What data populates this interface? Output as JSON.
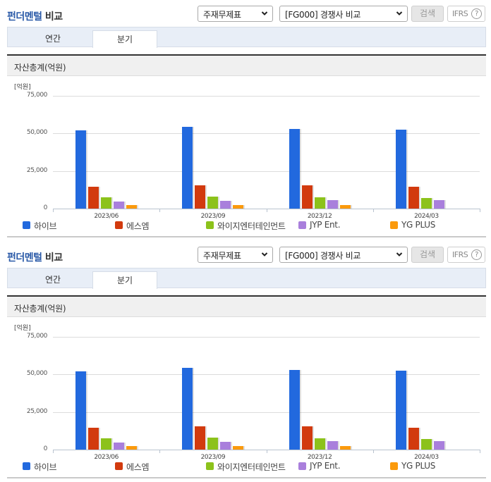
{
  "panels": [
    {
      "title_highlight": "펀더멘털",
      "title_rest": " 비교",
      "statement_select": {
        "value": "주재무제표"
      },
      "compare_select": {
        "value": "[FG000] 경쟁사 비교"
      },
      "search_button": "검색",
      "ifrs_button": "IFRS",
      "ifrs_help": "?",
      "tabs": [
        {
          "label": "연간",
          "active": false
        },
        {
          "label": "분기",
          "active": true
        }
      ],
      "section_title": "자산총계(억원)"
    },
    {
      "title_highlight": "펀더멘털",
      "title_rest": " 비교",
      "statement_select": {
        "value": "주재무제표"
      },
      "compare_select": {
        "value": "[FG000] 경쟁사 비교"
      },
      "search_button": "검색",
      "ifrs_button": "IFRS",
      "ifrs_help": "?",
      "tabs": [
        {
          "label": "연간",
          "active": false
        },
        {
          "label": "분기",
          "active": true
        }
      ],
      "section_title": "자산총계(억원)"
    }
  ],
  "chart_data": [
    {
      "type": "bar",
      "title": "자산총계(억원)",
      "unit_label": "[억원]",
      "xlabel": "",
      "ylabel": "",
      "ylim": [
        0,
        75000
      ],
      "yticks": [
        "75,000",
        "50,000",
        "25,000",
        "0"
      ],
      "ytick_values": [
        75000,
        50000,
        25000,
        0
      ],
      "grid": true,
      "legend_position": "bottom",
      "categories": [
        "2023/06",
        "2023/09",
        "2023/12",
        "2024/03"
      ],
      "series": [
        {
          "name": "하이브",
          "color": "#2269de",
          "values": [
            52200,
            54200,
            53200,
            52700
          ]
        },
        {
          "name": "에스엠",
          "color": "#d23a0e",
          "values": [
            14500,
            15500,
            15500,
            14500
          ]
        },
        {
          "name": "와이지엔터테인먼트",
          "color": "#8cc21b",
          "values": [
            7500,
            8000,
            7500,
            7000
          ]
        },
        {
          "name": "JYP Ent.",
          "color": "#a97fdc",
          "values": [
            4700,
            5200,
            5700,
            5700
          ]
        },
        {
          "name": "YG PLUS",
          "color": "#fb9a0c",
          "values": [
            2300,
            2300,
            2300,
            null
          ]
        }
      ]
    },
    {
      "type": "bar",
      "title": "자산총계(억원)",
      "unit_label": "[억원]",
      "xlabel": "",
      "ylabel": "",
      "ylim": [
        0,
        75000
      ],
      "yticks": [
        "75,000",
        "50,000",
        "25,000",
        "0"
      ],
      "ytick_values": [
        75000,
        50000,
        25000,
        0
      ],
      "grid": true,
      "legend_position": "bottom",
      "categories": [
        "2023/06",
        "2023/09",
        "2023/12",
        "2024/03"
      ],
      "series": [
        {
          "name": "하이브",
          "color": "#2269de",
          "values": [
            52200,
            54200,
            53200,
            52700
          ]
        },
        {
          "name": "에스엠",
          "color": "#d23a0e",
          "values": [
            14500,
            15500,
            15500,
            14500
          ]
        },
        {
          "name": "와이지엔터테인먼트",
          "color": "#8cc21b",
          "values": [
            7500,
            8000,
            7500,
            7000
          ]
        },
        {
          "name": "JYP Ent.",
          "color": "#a97fdc",
          "values": [
            4700,
            5200,
            5700,
            5700
          ]
        },
        {
          "name": "YG PLUS",
          "color": "#fb9a0c",
          "values": [
            2300,
            2300,
            2300,
            null
          ]
        }
      ]
    }
  ]
}
